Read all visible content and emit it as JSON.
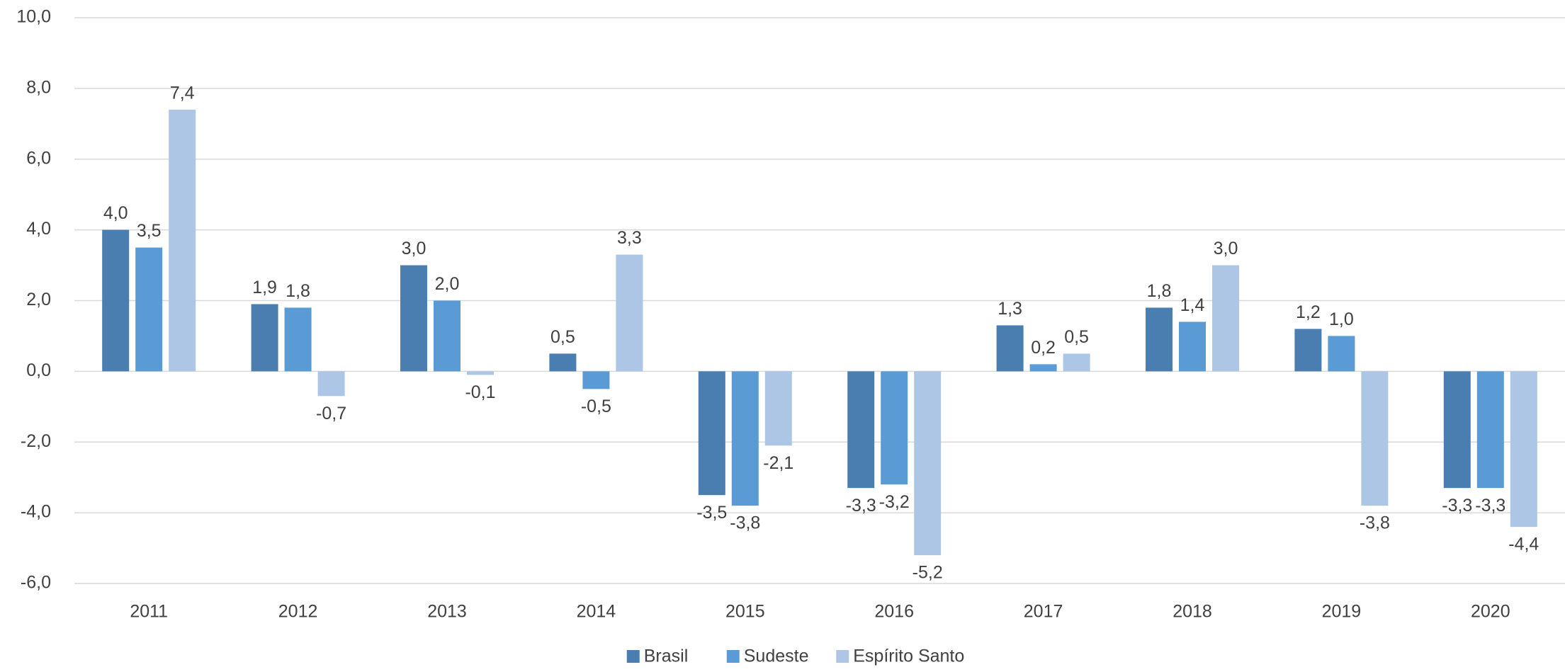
{
  "chart_data": {
    "type": "bar",
    "categories": [
      "2011",
      "2012",
      "2013",
      "2014",
      "2015",
      "2016",
      "2017",
      "2018",
      "2019",
      "2020"
    ],
    "series": [
      {
        "name": "Brasil",
        "color": "#4a7eb0",
        "values": [
          4.0,
          1.9,
          3.0,
          0.5,
          -3.5,
          -3.3,
          1.3,
          1.8,
          1.2,
          -3.3
        ],
        "value_labels": [
          "4,0",
          "1,9",
          "3,0",
          "0,5",
          "-3,5",
          "-3,3",
          "1,3",
          "1,8",
          "1,2",
          "-3,3"
        ]
      },
      {
        "name": "Sudeste",
        "color": "#5b9bd5",
        "values": [
          3.5,
          1.8,
          2.0,
          -0.5,
          -3.8,
          -3.2,
          0.2,
          1.4,
          1.0,
          -3.3
        ],
        "value_labels": [
          "3,5",
          "1,8",
          "2,0",
          "-0,5",
          "-3,8",
          "-3,2",
          "0,2",
          "1,4",
          "1,0",
          "-3,3"
        ]
      },
      {
        "name": "Espírito Santo",
        "color": "#adc6e5",
        "values": [
          7.4,
          -0.7,
          -0.1,
          3.3,
          -2.1,
          -5.2,
          0.5,
          3.0,
          -3.8,
          -4.4
        ],
        "value_labels": [
          "7,4",
          "-0,7",
          "-0,1",
          "3,3",
          "-2,1",
          "-5,2",
          "0,5",
          "3,0",
          "-3,8",
          "-4,4"
        ]
      }
    ],
    "ylim": [
      -6,
      10
    ],
    "yticks": [
      {
        "value": -6,
        "label": "-6,0"
      },
      {
        "value": -4,
        "label": "-4,0"
      },
      {
        "value": -2,
        "label": "-2,0"
      },
      {
        "value": 0,
        "label": "0,0"
      },
      {
        "value": 2,
        "label": "2,0"
      },
      {
        "value": 4,
        "label": "4,0"
      },
      {
        "value": 6,
        "label": "6,0"
      },
      {
        "value": 8,
        "label": "8,0"
      },
      {
        "value": 10,
        "label": "10,0"
      }
    ],
    "grid": true,
    "legend": "bottom"
  }
}
